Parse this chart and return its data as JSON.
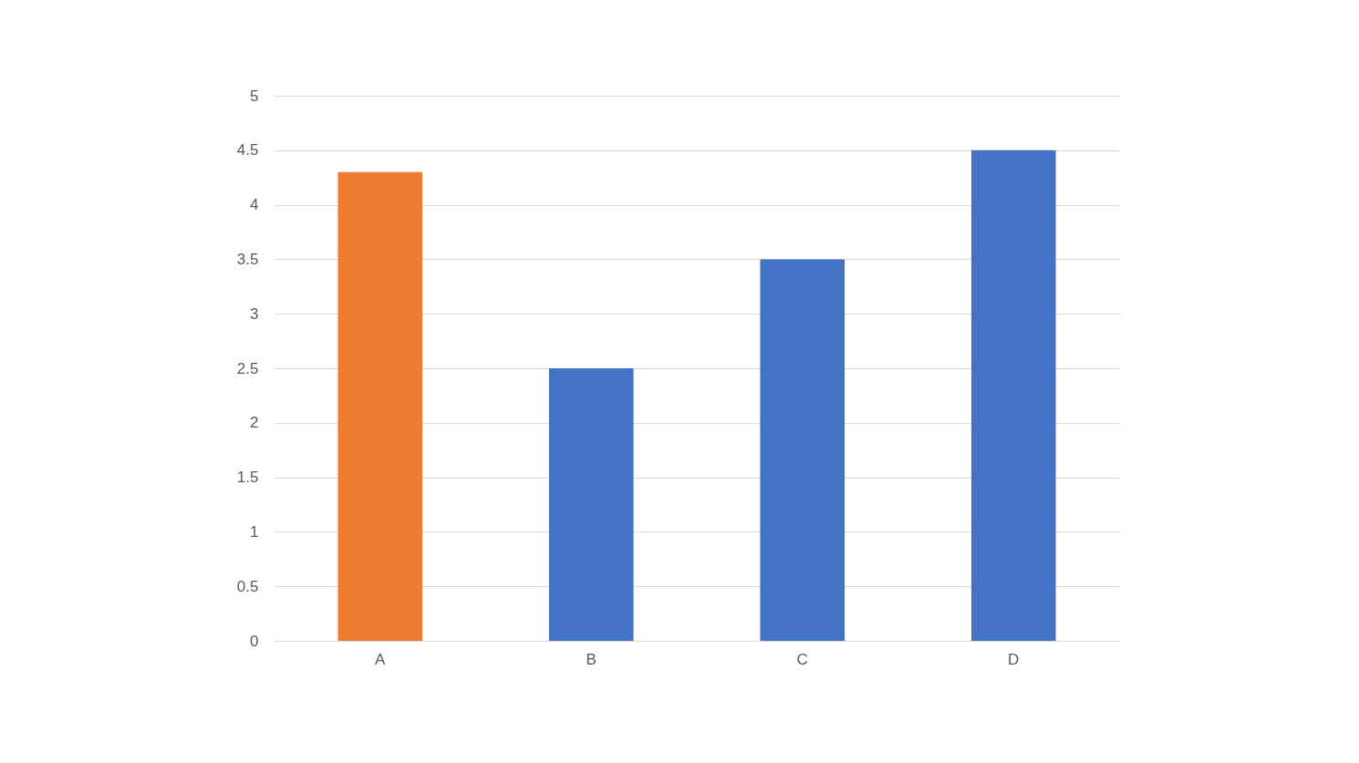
{
  "chart_data": {
    "type": "bar",
    "categories": [
      "A",
      "B",
      "C",
      "D"
    ],
    "values": [
      4.3,
      2.5,
      3.5,
      4.5
    ],
    "colors": [
      "#ed7d31",
      "#4472c4",
      "#4472c4",
      "#4472c4"
    ],
    "ylim": [
      0,
      5
    ],
    "yticks": [
      0,
      0.5,
      1,
      1.5,
      2,
      2.5,
      3,
      3.5,
      4,
      4.5,
      5
    ],
    "grid": "y"
  }
}
